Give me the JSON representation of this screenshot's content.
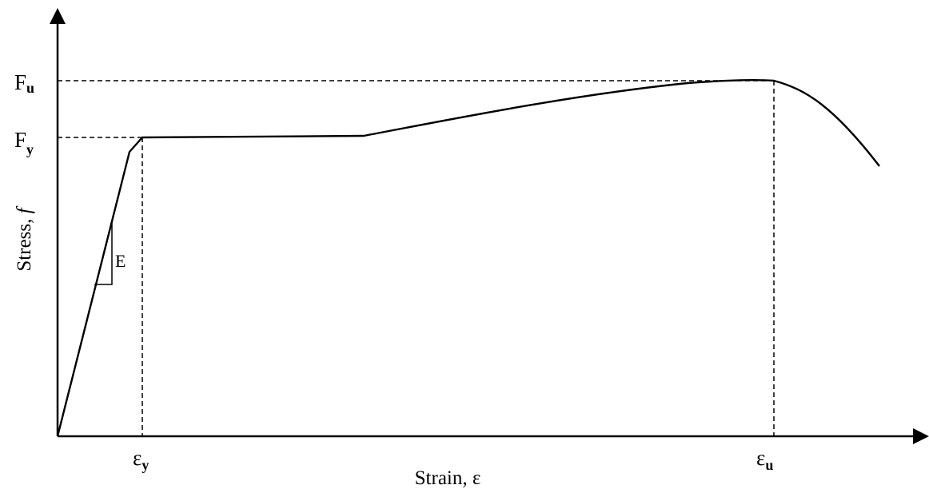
{
  "axes": {
    "x_label": "Strain, ε",
    "y_label_main": "Stress, ",
    "y_label_italic": "f"
  },
  "levels": {
    "fu": {
      "main": "F",
      "sub": "u"
    },
    "fy": {
      "main": "F",
      "sub": "y"
    }
  },
  "strains": {
    "ey": {
      "main": "ε",
      "sub": "y"
    },
    "eu": {
      "main": "ε",
      "sub": "u"
    }
  },
  "slope_label": "E"
}
